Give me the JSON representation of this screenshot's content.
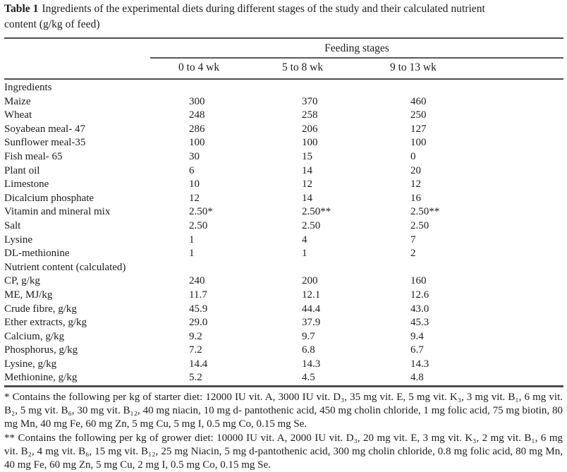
{
  "caption": {
    "label": "Table 1",
    "text": "Ingredients of the experimental diets during different stages of the study and their calculated nutrient\ncontent (g/kg of feed)"
  },
  "table": {
    "group_header": "Feeding stages",
    "columns": [
      "0 to 4 wk",
      "5 to 8 wk",
      "9 to 13 wk"
    ],
    "sections": [
      {
        "title": "Ingredients",
        "rows": [
          [
            "Maize",
            "300",
            "370",
            "460"
          ],
          [
            "Wheat",
            "248",
            "258",
            "250"
          ],
          [
            "Soyabean meal- 47",
            "286",
            "206",
            "127"
          ],
          [
            "Sunflower meal-35",
            "100",
            "100",
            "100"
          ],
          [
            "Fish meal- 65",
            "30",
            "15",
            "0"
          ],
          [
            "Plant oil",
            "6",
            "14",
            "20"
          ],
          [
            "Limestone",
            "10",
            "12",
            "12"
          ],
          [
            "Dicalcium phosphate",
            "12",
            "14",
            "16"
          ],
          [
            "Vitamin and mineral mix",
            "2.50*",
            "2.50**",
            "2.50**"
          ],
          [
            "Salt",
            "2.50",
            "2.50",
            "2.50"
          ],
          [
            "Lysine",
            "1",
            "4",
            "7"
          ],
          [
            "DL-methionine",
            "1",
            "1",
            "2"
          ]
        ]
      },
      {
        "title": "Nutrient content (calculated)",
        "rows": [
          [
            "CP, g/kg",
            "240",
            "200",
            "160"
          ],
          [
            "ME, MJ/kg",
            "11.7",
            "12.1",
            "12.6"
          ],
          [
            "Crude fibre, g/kg",
            "45.9",
            "44.4",
            "43.0"
          ],
          [
            "Ether extracts, g/kg",
            "29.0",
            "37.9",
            "45.3"
          ],
          [
            "Calcium, g/kg",
            "9.2",
            "9.7",
            "9.4"
          ],
          [
            "Phosphorus, g/kg",
            "7.2",
            "6.8",
            "6.7"
          ],
          [
            "Lysine, g/kg",
            "14.4",
            "14.3",
            "14.3"
          ],
          [
            "Methionine, g/kg",
            "5.2",
            "4.5",
            "4.8"
          ]
        ]
      }
    ]
  },
  "footnotes": [
    "* Contains the following per kg of starter diet: 12000 IU vit. A, 3000 IU vit. D₃, 35 mg vit. E, 5 mg vit. K₃, 3 mg vit. B₁, 6 mg vit. B₂, 5 mg vit. B₆, 30 mg vit. B₁₂, 40 mg niacin, 10 mg d- pantothenic acid, 450 mg cholin chloride, 1 mg folic acid, 75 mg biotin, 80 mg Mn, 40 mg Fe, 60 mg Zn, 5 mg Cu, 5 mg I, 0.5 mg Co, 0.15 mg Se.",
    "** Contains the following per kg of grower diet: 10000 IU vit. A, 2000 IU vit. D₃, 20 mg vit. E, 3 mg vit. K₃, 2 mg vit. B₁, 6 mg vit. B₂, 4 mg vit. B₆, 15 mg vit. B₁₂, 25 mg Niacin, 5 mg d-pantothenic acid, 300 mg cholin chloride, 0.8 mg folic acid, 80 mg Mn, 40 mg Fe, 60 mg Zn, 5 mg Cu, 2 mg I, 0.5 mg Co, 0.15 mg Se."
  ]
}
